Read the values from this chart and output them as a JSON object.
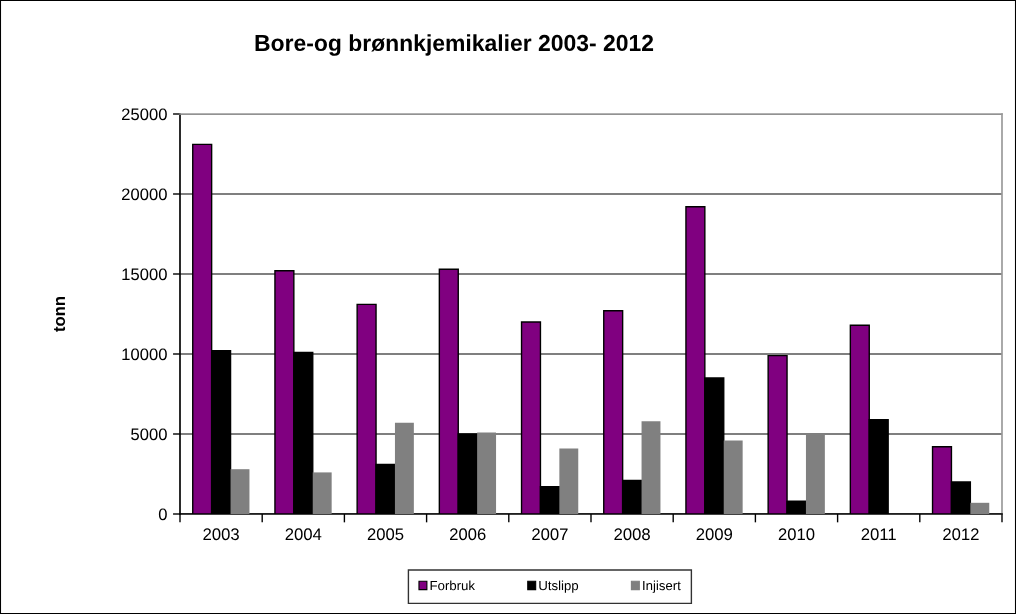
{
  "chart_data": {
    "type": "bar",
    "title": "Bore-og brønnkjemikalier 2003- 2012",
    "ylabel": "tonn",
    "categories": [
      "2003",
      "2004",
      "2005",
      "2006",
      "2007",
      "2008",
      "2009",
      "2010",
      "2011",
      "2012"
    ],
    "series": [
      {
        "name": "Forbruk",
        "color": "#800080",
        "values": [
          23100,
          15200,
          13100,
          15300,
          12000,
          12700,
          19200,
          9900,
          11800,
          4200
        ]
      },
      {
        "name": "Utslipp",
        "color": "#000000",
        "values": [
          10200,
          10100,
          3100,
          5000,
          1700,
          2100,
          8500,
          800,
          5900,
          2000
        ]
      },
      {
        "name": "Injisert",
        "color": "#808080",
        "values": [
          2800,
          2600,
          5700,
          5100,
          4100,
          5800,
          4600,
          5000,
          null,
          700
        ]
      }
    ],
    "ylim": [
      0,
      25000
    ],
    "yticks": [
      0,
      5000,
      10000,
      15000,
      20000,
      25000
    ],
    "grid": "y",
    "legend": "bottom"
  }
}
